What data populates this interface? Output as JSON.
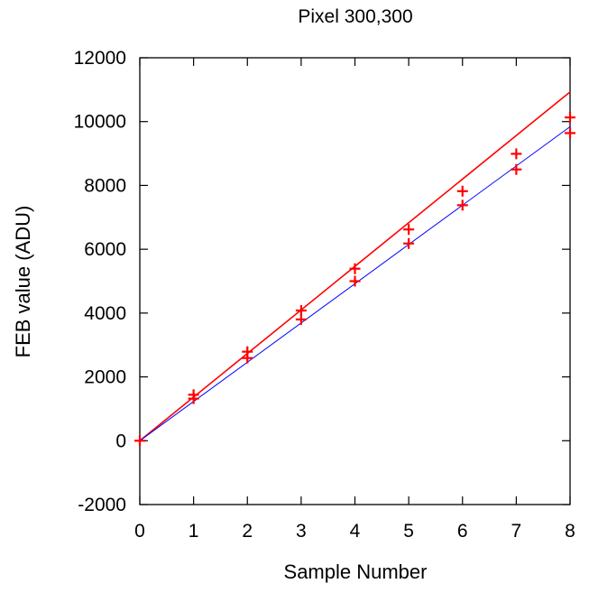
{
  "chart_data": {
    "type": "scatter",
    "title": "Pixel 300,300",
    "xlabel": "Sample Number",
    "ylabel": "FEB value (ADU)",
    "xlim": [
      0,
      8
    ],
    "ylim": [
      -2000,
      12000
    ],
    "xticks": [
      "0",
      "1",
      "2",
      "3",
      "4",
      "5",
      "6",
      "7",
      "8"
    ],
    "yticks": [
      "-2000",
      "0",
      "2000",
      "4000",
      "6000",
      "8000",
      "10000",
      "12000"
    ],
    "grid": false,
    "points": {
      "color": "#ff0000",
      "x": [
        0,
        1,
        1,
        2,
        2,
        3,
        3,
        4,
        4,
        5,
        5,
        6,
        6,
        7,
        7,
        8,
        8
      ],
      "y": [
        0,
        1440,
        1320,
        2790,
        2590,
        4080,
        3800,
        5390,
        5000,
        6620,
        6180,
        7820,
        7380,
        8990,
        8500,
        10130,
        9640
      ]
    },
    "fit_lines": [
      {
        "color": "#ff0000",
        "x": [
          0,
          8
        ],
        "y": [
          0,
          10930
        ]
      },
      {
        "color": "#0000ff",
        "x": [
          0,
          8
        ],
        "y": [
          0,
          9840
        ]
      }
    ]
  }
}
